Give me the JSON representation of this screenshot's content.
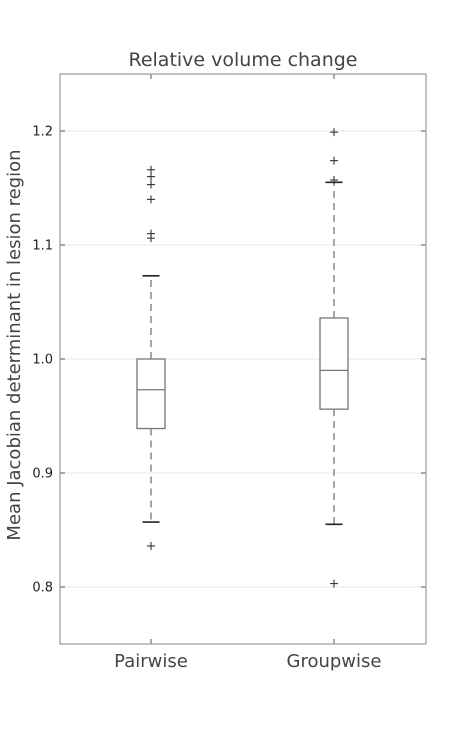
{
  "chart_data": {
    "type": "box",
    "title": "Relative volume change",
    "xlabel": "",
    "ylabel": "Mean Jacobian determinant in lesion region",
    "categories": [
      "Pairwise",
      "Groupwise"
    ],
    "ylim": [
      0.75,
      1.25
    ],
    "yticks": [
      0.8,
      0.9,
      1.0,
      1.1,
      1.2
    ],
    "ytick_labels": [
      "0.8",
      "0.9",
      "1.0",
      "1.1",
      "1.2"
    ],
    "grid": true,
    "series": [
      {
        "whisker_low": 0.857,
        "q1": 0.939,
        "median": 0.973,
        "q3": 1.0,
        "whisker_high": 1.073,
        "outliers": [
          0.836,
          1.106,
          1.11,
          1.14,
          1.153,
          1.16,
          1.166
        ]
      },
      {
        "whisker_low": 0.855,
        "q1": 0.956,
        "median": 0.99,
        "q3": 1.036,
        "whisker_high": 1.155,
        "outliers": [
          0.803,
          1.157,
          1.174,
          1.199
        ]
      }
    ],
    "colors": {
      "box": "#777777",
      "flier": "#333333",
      "grid": "#e8e8e8",
      "frame": "#999999"
    }
  }
}
